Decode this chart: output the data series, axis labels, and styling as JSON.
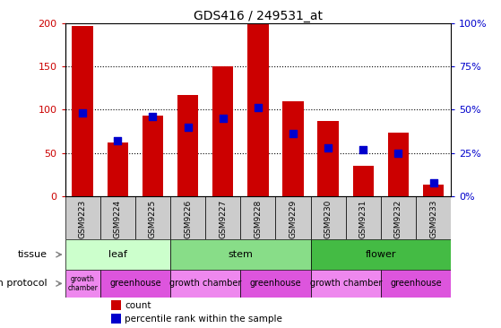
{
  "title": "GDS416 / 249531_at",
  "samples": [
    "GSM9223",
    "GSM9224",
    "GSM9225",
    "GSM9226",
    "GSM9227",
    "GSM9228",
    "GSM9229",
    "GSM9230",
    "GSM9231",
    "GSM9232",
    "GSM9233"
  ],
  "counts": [
    197,
    62,
    93,
    117,
    150,
    200,
    110,
    87,
    35,
    73,
    13
  ],
  "percentiles": [
    48,
    32,
    46,
    40,
    45,
    51,
    36,
    28,
    27,
    25,
    8
  ],
  "ylim": [
    0,
    200
  ],
  "y2lim": [
    0,
    100
  ],
  "yticks": [
    0,
    50,
    100,
    150,
    200
  ],
  "y2ticks": [
    0,
    25,
    50,
    75,
    100
  ],
  "tissue_groups": [
    {
      "label": "leaf",
      "start": 0,
      "end": 3,
      "color": "#ccffcc"
    },
    {
      "label": "stem",
      "start": 3,
      "end": 7,
      "color": "#88dd88"
    },
    {
      "label": "flower",
      "start": 7,
      "end": 11,
      "color": "#44bb44"
    }
  ],
  "growth_groups": [
    {
      "label": "growth\nchamber",
      "start": 0,
      "end": 1,
      "color": "#ee88ee"
    },
    {
      "label": "greenhouse",
      "start": 1,
      "end": 3,
      "color": "#dd55dd"
    },
    {
      "label": "growth chamber",
      "start": 3,
      "end": 5,
      "color": "#ee88ee"
    },
    {
      "label": "greenhouse",
      "start": 5,
      "end": 7,
      "color": "#dd55dd"
    },
    {
      "label": "growth chamber",
      "start": 7,
      "end": 9,
      "color": "#ee88ee"
    },
    {
      "label": "greenhouse",
      "start": 9,
      "end": 11,
      "color": "#dd55dd"
    }
  ],
  "bar_color": "#cc0000",
  "pct_color": "#0000cc",
  "grid_color": "#000000",
  "label_color_left": "#cc0000",
  "label_color_right": "#0000cc",
  "bg_color": "#ffffff",
  "tickbox_color": "#cccccc",
  "tissue_label": "tissue",
  "growth_label": "growth protocol",
  "legend_count": "count",
  "legend_pct": "percentile rank within the sample"
}
